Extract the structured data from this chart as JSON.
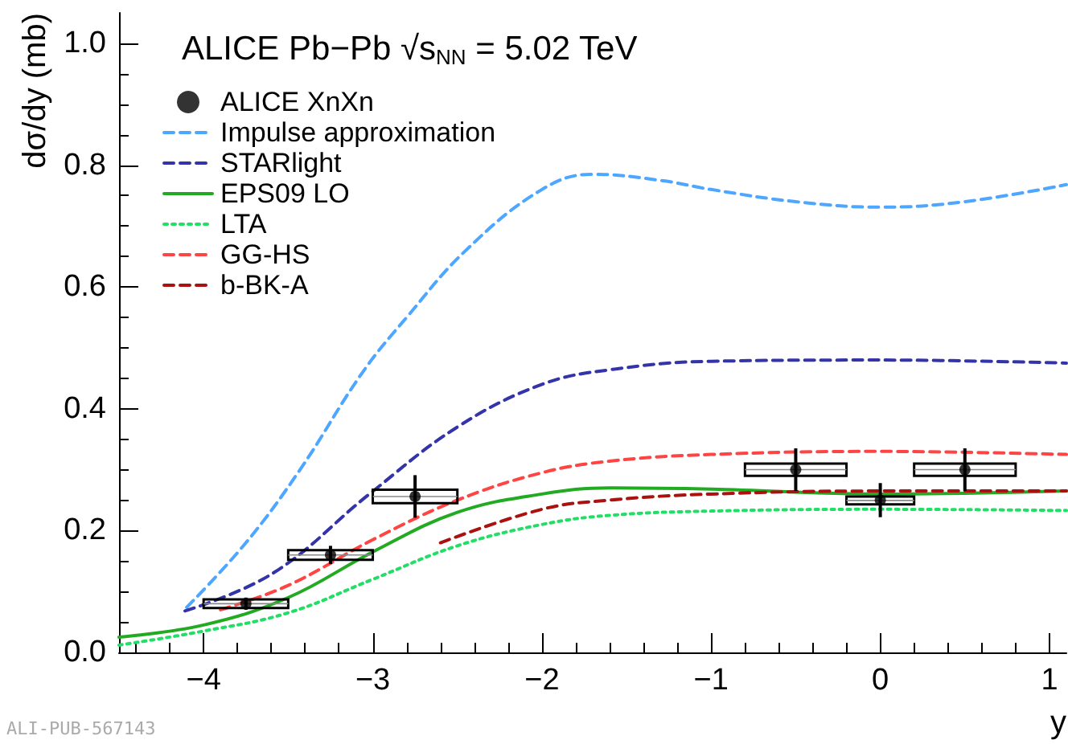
{
  "chart_data": {
    "type": "line",
    "title": "ALICE Pb−Pb √s$_{NN}$ = 5.02 TeV",
    "xlabel": "y",
    "ylabel": "dσ/dy (mb)",
    "annotations": [
      "ALI-PUB-567143"
    ],
    "xlim": [
      -4.5,
      1.1
    ],
    "ylim": [
      0,
      1.05
    ],
    "xticks": [
      {
        "value": -4,
        "label": "−4"
      },
      {
        "value": -3,
        "label": "−3"
      },
      {
        "value": -2,
        "label": "−2"
      },
      {
        "value": -1,
        "label": "−1"
      },
      0,
      1
    ],
    "yticks": [
      {
        "value": 0,
        "label": "0.0"
      },
      0.2,
      0.4,
      0.6,
      0.8,
      {
        "value": 1,
        "label": "1.0"
      }
    ],
    "grid": false,
    "legend": "top left",
    "marker": "none",
    "series": [
      {
        "name": "ALICE XnXn",
        "type": "scatter",
        "marker": "circle",
        "color": "#000000",
        "x": [
          -3.75,
          -3.25,
          -2.75,
          -0.5,
          0,
          0.5
        ],
        "values": [
          0.08,
          0.16,
          0.256,
          0.3,
          0.25,
          0.3
        ],
        "errors": [
          0.01,
          0.015,
          0.035,
          0.035,
          0.028,
          0.035
        ]
      },
      {
        "type": "bar",
        "color": "#000000",
        "x": [
          -3.75,
          -3.25,
          -2.75,
          -0.5,
          0,
          0.5
        ],
        "base": [
          0.073,
          0.152,
          0.245,
          0.29,
          0.243,
          0.29
        ],
        "values": [
          0.014,
          0.016,
          0.022,
          0.02,
          0.013,
          0.02
        ],
        "xerrors": [
          0.25,
          0.25,
          0.25,
          0.3,
          0.2,
          0.3
        ]
      },
      {
        "name": "Impulse approximation",
        "line_style": "dashed",
        "color": "#4da6ff",
        "x": [
          -4.1,
          -3.75,
          -3.43,
          -3.06,
          -2.8,
          -2.45,
          -2,
          -1.7,
          -1.3,
          -1,
          -0.5,
          0,
          0.5,
          1.1
        ],
        "values": [
          0.074,
          0.18,
          0.3,
          0.46,
          0.55,
          0.66,
          0.76,
          0.785,
          0.775,
          0.76,
          0.74,
          0.731,
          0.74,
          0.768
        ]
      },
      {
        "name": "STARlight",
        "line_style": "dashed",
        "color": "#3333aa",
        "x": [
          -4.11,
          -3.59,
          -3.02,
          -2.5,
          -2,
          -1.6,
          -1,
          0,
          1.1
        ],
        "values": [
          0.068,
          0.13,
          0.26,
          0.37,
          0.44,
          0.464,
          0.478,
          0.48,
          0.475
        ]
      },
      {
        "name": "EPS09 LO",
        "line_style": "solid",
        "color": "#22aa22",
        "x": [
          -4.5,
          -4,
          -3.5,
          -3,
          -2.5,
          -2,
          -1.6,
          -1,
          0,
          1.1
        ],
        "values": [
          0.025,
          0.045,
          0.09,
          0.165,
          0.23,
          0.26,
          0.27,
          0.268,
          0.26,
          0.265
        ]
      },
      {
        "name": "LTA",
        "line_style": "dotted",
        "color": "#22dd66",
        "x": [
          -4.5,
          -4,
          -3.5,
          -3,
          -2.5,
          -2,
          -1.6,
          -1,
          0,
          1.1
        ],
        "values": [
          0.012,
          0.035,
          0.065,
          0.12,
          0.175,
          0.21,
          0.225,
          0.232,
          0.235,
          0.233
        ]
      },
      {
        "name": "GG-HS",
        "line_style": "dashed",
        "color": "#ff4444",
        "x": [
          -3.9,
          -3.5,
          -3,
          -2.5,
          -2,
          -1.6,
          -1,
          0,
          1.1
        ],
        "values": [
          0.07,
          0.11,
          0.185,
          0.25,
          0.295,
          0.314,
          0.325,
          0.33,
          0.325
        ]
      },
      {
        "name": "b-BK-A",
        "line_style": "dashed",
        "color": "#aa1111",
        "x": [
          -2.6,
          -2,
          -1.6,
          -1,
          0,
          1.1
        ],
        "values": [
          0.18,
          0.235,
          0.25,
          0.26,
          0.265,
          0.265
        ]
      }
    ]
  }
}
